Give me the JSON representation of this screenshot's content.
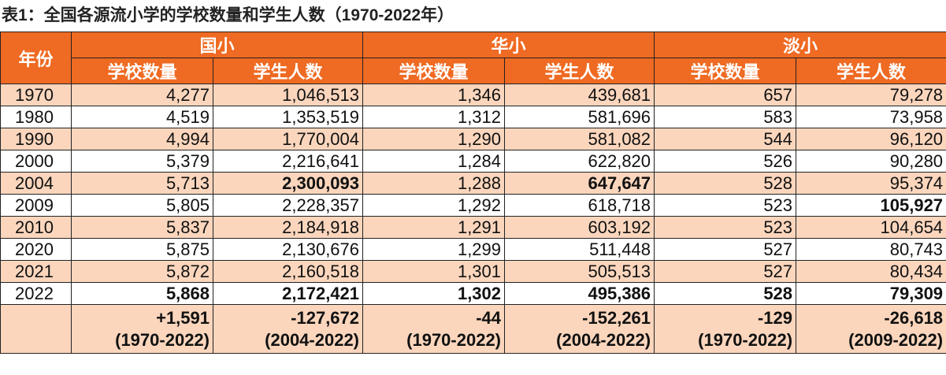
{
  "title": "表1：全国各源流小学的学校数量和学生人数（1970-2022年）",
  "header": {
    "year_label": "年份",
    "groups": [
      "国小",
      "华小",
      "淡小"
    ],
    "sub": [
      "学校数量",
      "学生人数",
      "学校数量",
      "学生人数",
      "学校数量",
      "学生人数"
    ]
  },
  "rows": [
    {
      "year": "1970",
      "cells": [
        "4,277",
        "1,046,513",
        "1,346",
        "439,681",
        "657",
        "79,278"
      ]
    },
    {
      "year": "1980",
      "cells": [
        "4,519",
        "1,353,519",
        "1,312",
        "581,696",
        "583",
        "73,958"
      ]
    },
    {
      "year": "1990",
      "cells": [
        "4,994",
        "1,770,004",
        "1,290",
        "581,082",
        "544",
        "96,120"
      ]
    },
    {
      "year": "2000",
      "cells": [
        "5,379",
        "2,216,641",
        "1,284",
        "622,820",
        "526",
        "90,280"
      ]
    },
    {
      "year": "2004",
      "cells": [
        "5,713",
        "2,300,093",
        "1,288",
        "647,647",
        "528",
        "95,374"
      ]
    },
    {
      "year": "2009",
      "cells": [
        "5,805",
        "2,228,357",
        "1,292",
        "618,718",
        "523",
        "105,927"
      ]
    },
    {
      "year": "2010",
      "cells": [
        "5,837",
        "2,184,918",
        "1,291",
        "603,192",
        "523",
        "104,654"
      ]
    },
    {
      "year": "2020",
      "cells": [
        "5,875",
        "2,130,676",
        "1,299",
        "511,448",
        "527",
        "80,743"
      ]
    },
    {
      "year": "2021",
      "cells": [
        "5,872",
        "2,160,518",
        "1,301",
        "505,513",
        "527",
        "80,434"
      ]
    },
    {
      "year": "2022",
      "cells": [
        "5,868",
        "2,172,421",
        "1,302",
        "495,386",
        "528",
        "79,309"
      ]
    }
  ],
  "change": {
    "year": "",
    "values": [
      "+1,591",
      "-127,672",
      "-44",
      "-152,261",
      "-129",
      "-26,618"
    ],
    "periods": [
      "(1970-2022)",
      "(2004-2022)",
      "(1970-2022)",
      "(2004-2022)",
      "(1970-2022)",
      "(2009-2022)"
    ]
  },
  "colors": {
    "header": "#ef6a22",
    "shade": "#fbd6bd"
  }
}
